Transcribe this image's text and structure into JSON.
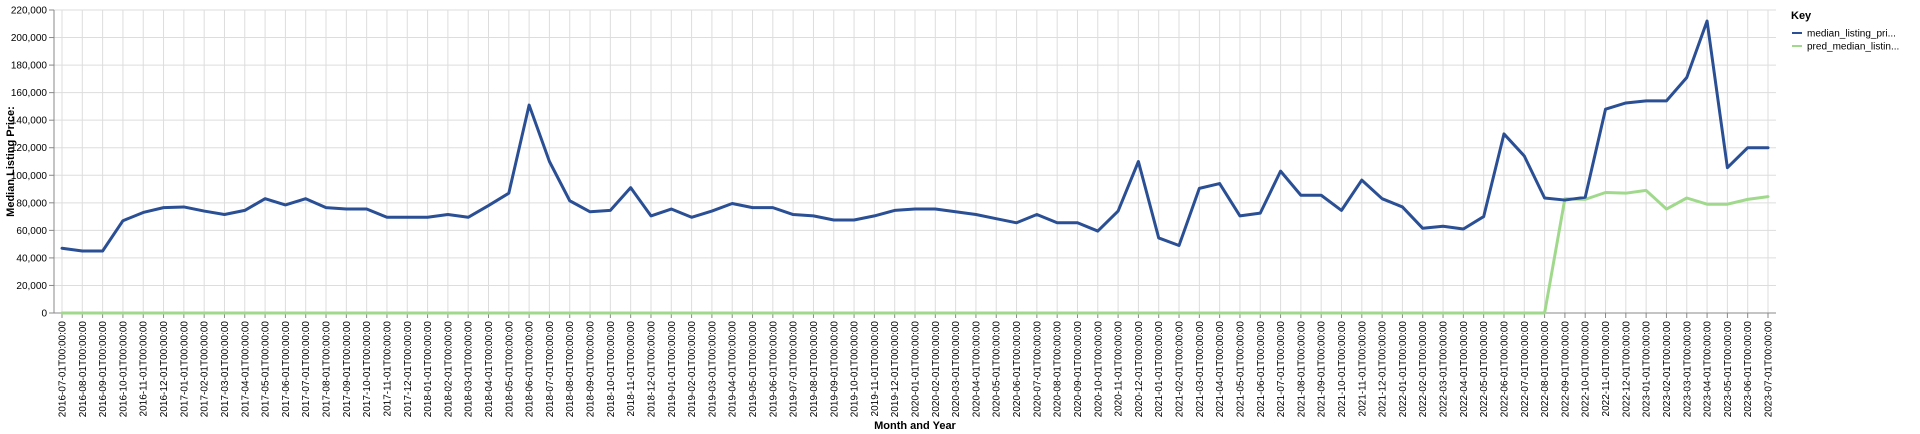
{
  "chart_data": {
    "type": "line",
    "xlabel": "Month and Year",
    "ylabel": "Median Listing Price:",
    "ylim": [
      0,
      220000
    ],
    "y_ticks": [
      "0",
      "20,000",
      "40,000",
      "60,000",
      "80,000",
      "100,000",
      "120,000",
      "140,000",
      "160,000",
      "180,000",
      "200,000",
      "220,000"
    ],
    "y_tick_values": [
      0,
      20000,
      40000,
      60000,
      80000,
      100000,
      120000,
      140000,
      160000,
      180000,
      200000,
      220000
    ],
    "grid": true,
    "legend": {
      "title": "Key",
      "position": "right"
    },
    "x": [
      "2016-07-01T00:00:00",
      "2016-08-01T00:00:00",
      "2016-09-01T00:00:00",
      "2016-10-01T00:00:00",
      "2016-11-01T00:00:00",
      "2016-12-01T00:00:00",
      "2017-01-01T00:00:00",
      "2017-02-01T00:00:00",
      "2017-03-01T00:00:00",
      "2017-04-01T00:00:00",
      "2017-05-01T00:00:00",
      "2017-06-01T00:00:00",
      "2017-07-01T00:00:00",
      "2017-08-01T00:00:00",
      "2017-09-01T00:00:00",
      "2017-10-01T00:00:00",
      "2017-11-01T00:00:00",
      "2017-12-01T00:00:00",
      "2018-01-01T00:00:00",
      "2018-02-01T00:00:00",
      "2018-03-01T00:00:00",
      "2018-04-01T00:00:00",
      "2018-05-01T00:00:00",
      "2018-06-01T00:00:00",
      "2018-07-01T00:00:00",
      "2018-08-01T00:00:00",
      "2018-09-01T00:00:00",
      "2018-10-01T00:00:00",
      "2018-11-01T00:00:00",
      "2018-12-01T00:00:00",
      "2019-01-01T00:00:00",
      "2019-02-01T00:00:00",
      "2019-03-01T00:00:00",
      "2019-04-01T00:00:00",
      "2019-05-01T00:00:00",
      "2019-06-01T00:00:00",
      "2019-07-01T00:00:00",
      "2019-08-01T00:00:00",
      "2019-09-01T00:00:00",
      "2019-10-01T00:00:00",
      "2019-11-01T00:00:00",
      "2019-12-01T00:00:00",
      "2020-01-01T00:00:00",
      "2020-02-01T00:00:00",
      "2020-03-01T00:00:00",
      "2020-04-01T00:00:00",
      "2020-05-01T00:00:00",
      "2020-06-01T00:00:00",
      "2020-07-01T00:00:00",
      "2020-08-01T00:00:00",
      "2020-09-01T00:00:00",
      "2020-10-01T00:00:00",
      "2020-11-01T00:00:00",
      "2020-12-01T00:00:00",
      "2021-01-01T00:00:00",
      "2021-02-01T00:00:00",
      "2021-03-01T00:00:00",
      "2021-04-01T00:00:00",
      "2021-05-01T00:00:00",
      "2021-06-01T00:00:00",
      "2021-07-01T00:00:00",
      "2021-08-01T00:00:00",
      "2021-09-01T00:00:00",
      "2021-10-01T00:00:00",
      "2021-11-01T00:00:00",
      "2021-12-01T00:00:00",
      "2022-01-01T00:00:00",
      "2022-02-01T00:00:00",
      "2022-03-01T00:00:00",
      "2022-04-01T00:00:00",
      "2022-05-01T00:00:00",
      "2022-06-01T00:00:00",
      "2022-07-01T00:00:00",
      "2022-08-01T00:00:00",
      "2022-09-01T00:00:00",
      "2022-10-01T00:00:00",
      "2022-11-01T00:00:00",
      "2022-12-01T00:00:00",
      "2023-01-01T00:00:00",
      "2023-02-01T00:00:00",
      "2023-03-01T00:00:00",
      "2023-04-01T00:00:00",
      "2023-05-01T00:00:00",
      "2023-06-01T00:00:00",
      "2023-07-01T00:00:00"
    ],
    "series": [
      {
        "name": "median_listing_pri...",
        "color": "#2a4f94",
        "values": [
          47000,
          45000,
          45000,
          67000,
          73000,
          76500,
          77000,
          74000,
          71500,
          74500,
          83000,
          78500,
          83000,
          76500,
          75500,
          75500,
          69500,
          69500,
          69500,
          71500,
          69500,
          78000,
          87000,
          151000,
          110000,
          81500,
          73500,
          74500,
          91000,
          70500,
          75500,
          69500,
          74000,
          79500,
          76500,
          76500,
          71500,
          70500,
          67500,
          67500,
          70500,
          74500,
          75500,
          75500,
          73500,
          71500,
          68500,
          65500,
          71500,
          65500,
          65500,
          59500,
          74000,
          110000,
          54500,
          49000,
          90500,
          94000,
          70500,
          72500,
          103000,
          85500,
          85500,
          74500,
          96500,
          83000,
          77000,
          61500,
          63000,
          61000,
          70000,
          130000,
          114000,
          83500,
          82000,
          84000,
          148000,
          152500,
          154000,
          154000,
          171000,
          212000,
          105500,
          120000,
          120000
        ]
      },
      {
        "name": "pred_median_listin...",
        "color": "#a0d98c",
        "values": [
          0,
          0,
          0,
          0,
          0,
          0,
          0,
          0,
          0,
          0,
          0,
          0,
          0,
          0,
          0,
          0,
          0,
          0,
          0,
          0,
          0,
          0,
          0,
          0,
          0,
          0,
          0,
          0,
          0,
          0,
          0,
          0,
          0,
          0,
          0,
          0,
          0,
          0,
          0,
          0,
          0,
          0,
          0,
          0,
          0,
          0,
          0,
          0,
          0,
          0,
          0,
          0,
          0,
          0,
          0,
          0,
          0,
          0,
          0,
          0,
          0,
          0,
          0,
          0,
          0,
          0,
          0,
          0,
          0,
          0,
          0,
          0,
          0,
          0,
          83000,
          82500,
          87500,
          87000,
          89000,
          75500,
          83500,
          79000,
          79000,
          82500,
          84500
        ]
      }
    ]
  }
}
